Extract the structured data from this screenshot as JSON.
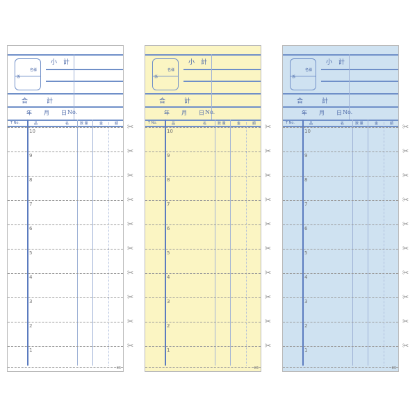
{
  "slips": [
    {
      "color_name": "white",
      "background": "#ffffff"
    },
    {
      "color_name": "yellow",
      "background": "#fbf5c3"
    },
    {
      "color_name": "blue",
      "background": "#cfe2f1"
    }
  ],
  "labels": {
    "subtotal": "小　計",
    "name": "名様",
    "staff": "係",
    "total": "合　　　計",
    "year": "年",
    "month": "月",
    "day": "日",
    "no": "No.",
    "table_no": "T No.",
    "item_1": "品",
    "item_2": "名",
    "qty": "数 量",
    "amount_1": "金",
    "amount_2": "額",
    "code": "K3"
  },
  "row_numbers": [
    "10",
    "9",
    "8",
    "7",
    "6",
    "5",
    "4",
    "3",
    "2",
    "1"
  ],
  "icons": {
    "cut_line": "scissors-icon"
  },
  "line_color": "#6f8fc8"
}
